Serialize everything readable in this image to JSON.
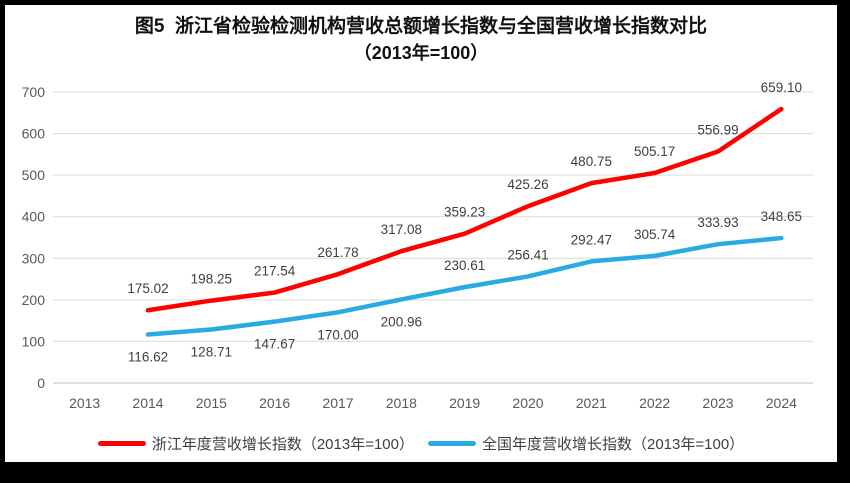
{
  "title": {
    "line1": "图5  浙江省检验检测机构营收总额增长指数与全国营收增长指数对比",
    "line2": "（2013年=100）"
  },
  "chart_data": {
    "type": "line",
    "title": "图5 浙江省检验检测机构营收总额增长指数与全国营收增长指数对比（2013年=100）",
    "categories": [
      "2013",
      "2014",
      "2015",
      "2016",
      "2017",
      "2018",
      "2019",
      "2020",
      "2021",
      "2022",
      "2023",
      "2024"
    ],
    "ylim": [
      0,
      700
    ],
    "ytick_step": 100,
    "yticks": [
      0,
      100,
      200,
      300,
      400,
      500,
      600,
      700
    ],
    "grid": "horizontal",
    "legend_position": "bottom",
    "series": [
      {
        "name": "浙江年度营收增长指数（2013年=100）",
        "color": "#FE0000",
        "start_category": "2014",
        "values": [
          175.02,
          198.25,
          217.54,
          261.78,
          317.08,
          359.23,
          425.26,
          480.75,
          505.17,
          556.99,
          659.1
        ],
        "label_side": [
          "above",
          "above",
          "above",
          "above",
          "above",
          "above",
          "above",
          "above",
          "above",
          "above",
          "above"
        ]
      },
      {
        "name": "全国年度营收增长指数（2013年=100）",
        "color": "#29ABE2",
        "start_category": "2014",
        "values": [
          116.62,
          128.71,
          147.67,
          170.0,
          200.96,
          230.61,
          256.41,
          292.47,
          305.74,
          333.93,
          348.65
        ],
        "label_side": [
          "below",
          "below",
          "below",
          "below",
          "below",
          "above",
          "above",
          "above",
          "above",
          "above",
          "above"
        ]
      }
    ]
  },
  "legend": {
    "items": [
      {
        "label": "浙江年度营收增长指数（2013年=100）",
        "color": "#FE0000"
      },
      {
        "label": "全国年度营收增长指数（2013年=100）",
        "color": "#29ABE2"
      }
    ]
  },
  "colors": {
    "frame": "#000000",
    "background": "#ffffff",
    "gridline": "#D9D9D9",
    "axis_line": "#BFBFBF",
    "tick_label": "#595959",
    "data_label": "#3f3f3f"
  }
}
